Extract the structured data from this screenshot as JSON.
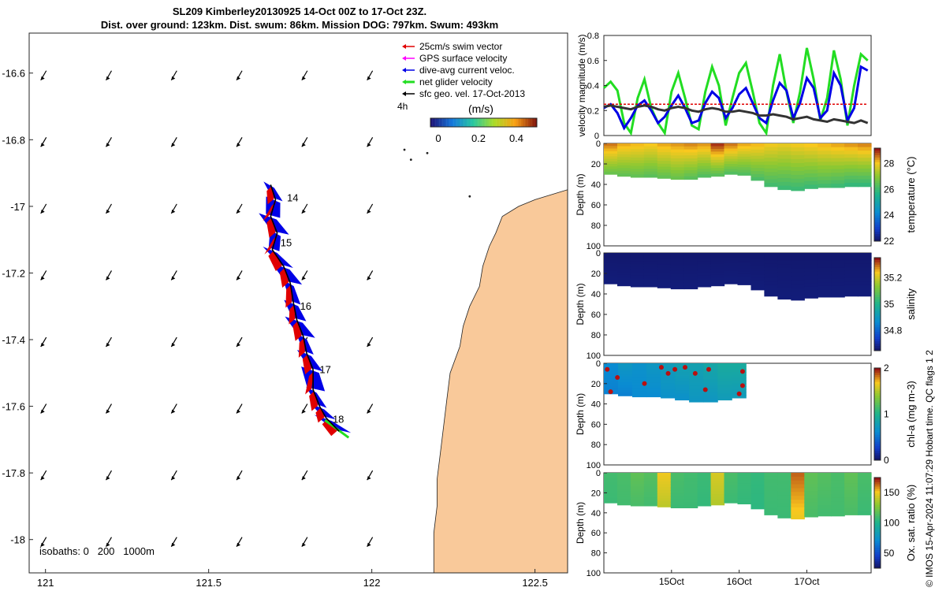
{
  "title": {
    "line1": "SL209 Kimberley20130925 14-Oct 00Z to 17-Oct 23Z.",
    "line2": "Dist. over ground: 123km. Dist. swum: 86km. Mission DOG: 797km. Swum: 493km"
  },
  "footer": "© IMOS 15-Apr-2024 11:07:29 Hobart time. QC flags 1 2",
  "colors": {
    "land": "#f9c99a",
    "swim_vector": "#e00000",
    "gps_velocity": "#ff00ff",
    "current_arrow": "#0000e6",
    "glider_velocity": "#22dd22",
    "geo_velocity": "#000000"
  },
  "chart_data": [
    {
      "type": "map",
      "x_ticks": [
        "121",
        "121.5",
        "122",
        "122.5"
      ],
      "y_ticks": [
        "-16.6",
        "-16.8",
        "-17",
        "-17.2",
        "-17.4",
        "-17.6",
        "-17.8",
        "-18"
      ],
      "xlim": [
        120.95,
        122.6
      ],
      "ylim": [
        -18.1,
        -16.48
      ],
      "legend": {
        "placement": "top-right",
        "items": [
          "25cm/s swim vector",
          "GPS surface velocity",
          "dive-avg current veloc.",
          "net glider velocity",
          "sfc geo. vel. 17-Oct-2013"
        ],
        "time_label": "4h",
        "colorbar_title": "(m/s)",
        "colorbar_ticks": [
          "0",
          "0.2",
          "0.4"
        ]
      },
      "isobaths_label": "isobaths: 0   200   1000m",
      "day_labels": [
        {
          "text": "14",
          "lon": 121.74,
          "lat": -16.985
        },
        {
          "text": "15",
          "lon": 121.72,
          "lat": -17.12
        },
        {
          "text": "16",
          "lon": 121.78,
          "lat": -17.31
        },
        {
          "text": "17",
          "lon": 121.84,
          "lat": -17.5
        },
        {
          "text": "18",
          "lon": 121.88,
          "lat": -17.65
        }
      ],
      "track": [
        [
          121.69,
          -16.935
        ],
        [
          121.705,
          -16.98
        ],
        [
          121.69,
          -17.03
        ],
        [
          121.71,
          -17.08
        ],
        [
          121.695,
          -17.13
        ],
        [
          121.73,
          -17.18
        ],
        [
          121.75,
          -17.23
        ],
        [
          121.76,
          -17.29
        ],
        [
          121.77,
          -17.34
        ],
        [
          121.79,
          -17.39
        ],
        [
          121.8,
          -17.44
        ],
        [
          121.82,
          -17.49
        ],
        [
          121.82,
          -17.55
        ],
        [
          121.84,
          -17.6
        ],
        [
          121.86,
          -17.635
        ],
        [
          121.9,
          -17.675
        ]
      ]
    },
    {
      "type": "line",
      "ylabel": "velocity magnitude (m/s)",
      "ylim": [
        0,
        0.8
      ],
      "y_ticks": [
        "0",
        "0.2",
        "0.4",
        "0.6",
        "0.8"
      ],
      "x": [
        14.0,
        14.1,
        14.2,
        14.3,
        14.4,
        14.5,
        14.6,
        14.7,
        14.8,
        14.9,
        15.0,
        15.1,
        15.2,
        15.3,
        15.4,
        15.5,
        15.6,
        15.7,
        15.8,
        15.9,
        16.0,
        16.1,
        16.2,
        16.3,
        16.4,
        16.5,
        16.6,
        16.7,
        16.8,
        16.9,
        17.0,
        17.1,
        17.2,
        17.3,
        17.4,
        17.5,
        17.6,
        17.7,
        17.8,
        17.9
      ],
      "series": [
        {
          "color": "#22dd22",
          "values": [
            0.38,
            0.43,
            0.36,
            0.1,
            0.02,
            0.3,
            0.45,
            0.22,
            0.1,
            0.02,
            0.35,
            0.5,
            0.3,
            0.08,
            0.05,
            0.35,
            0.55,
            0.4,
            0.08,
            0.3,
            0.5,
            0.58,
            0.35,
            0.1,
            0.02,
            0.4,
            0.65,
            0.35,
            0.1,
            0.35,
            0.7,
            0.45,
            0.12,
            0.3,
            0.68,
            0.45,
            0.08,
            0.4,
            0.65,
            0.6
          ]
        },
        {
          "color": "#0000e6",
          "values": [
            0.22,
            0.25,
            0.18,
            0.06,
            0.14,
            0.24,
            0.28,
            0.2,
            0.1,
            0.15,
            0.24,
            0.32,
            0.22,
            0.1,
            0.12,
            0.26,
            0.35,
            0.3,
            0.14,
            0.22,
            0.33,
            0.38,
            0.26,
            0.14,
            0.1,
            0.28,
            0.42,
            0.36,
            0.14,
            0.26,
            0.46,
            0.38,
            0.14,
            0.2,
            0.5,
            0.4,
            0.12,
            0.22,
            0.55,
            0.52
          ]
        },
        {
          "color": "#e00000",
          "dash": true,
          "values": [
            0.25,
            0.25,
            0.25,
            0.25,
            0.25,
            0.25,
            0.25,
            0.25,
            0.25,
            0.25,
            0.25,
            0.25,
            0.25,
            0.25,
            0.25,
            0.25,
            0.25,
            0.25,
            0.25,
            0.25,
            0.25,
            0.25,
            0.25,
            0.25,
            0.25,
            0.25,
            0.25,
            0.25,
            0.25,
            0.25,
            0.25,
            0.25,
            0.25,
            0.25,
            0.25,
            0.25,
            0.25,
            0.25,
            0.25,
            0.25
          ]
        },
        {
          "color": "#333333",
          "values": [
            0.23,
            0.24,
            0.23,
            0.22,
            0.21,
            0.23,
            0.24,
            0.23,
            0.21,
            0.2,
            0.22,
            0.23,
            0.22,
            0.2,
            0.19,
            0.21,
            0.22,
            0.21,
            0.19,
            0.19,
            0.2,
            0.19,
            0.18,
            0.16,
            0.16,
            0.17,
            0.16,
            0.15,
            0.13,
            0.14,
            0.15,
            0.13,
            0.12,
            0.11,
            0.13,
            0.12,
            0.11,
            0.1,
            0.12,
            0.1
          ]
        }
      ]
    },
    {
      "type": "heatmap",
      "variable": "temperature",
      "ylabel": "Depth (m)",
      "colorbar_label": "temperature (°C)",
      "colorbar_ticks": [
        "28",
        "26",
        "24",
        "22"
      ],
      "clim": [
        22,
        29.2
      ],
      "y_ticks": [
        "0",
        "20",
        "40",
        "60",
        "80",
        "100"
      ],
      "bottom_depth": [
        30,
        32,
        33,
        33,
        34,
        35,
        35,
        33,
        32,
        30,
        31,
        36,
        42,
        45,
        46,
        44,
        43,
        43,
        42,
        42
      ],
      "top_value": [
        28.6,
        28.3,
        28.2,
        28.1,
        28.3,
        28.4,
        28.5,
        28.4,
        29.0,
        28.6,
        28.3,
        28.2,
        28.0,
        27.9,
        28.0,
        28.1,
        28.2,
        28.3,
        28.4,
        28.5
      ],
      "bottom_value": [
        26.6,
        26.5,
        26.5,
        26.4,
        26.5,
        26.6,
        26.4,
        26.3,
        26.4,
        26.3,
        26.3,
        26.2,
        26.1,
        26.0,
        26.0,
        26.0,
        26.1,
        26.0,
        25.9,
        25.9
      ],
      "outline": "band"
    },
    {
      "type": "heatmap",
      "variable": "salinity",
      "ylabel": "Depth (m)",
      "colorbar_label": "salinity",
      "colorbar_ticks": [
        "35.2",
        "35",
        "34.8"
      ],
      "clim": [
        34.65,
        35.35
      ],
      "y_ticks": [
        "0",
        "20",
        "40",
        "60",
        "80",
        "100"
      ],
      "bottom_depth": [
        30,
        32,
        33,
        33,
        34,
        35,
        35,
        33,
        32,
        30,
        31,
        36,
        42,
        45,
        46,
        44,
        43,
        43,
        42,
        42
      ],
      "top_value": [
        34.65,
        34.65,
        34.65,
        34.65,
        34.65,
        34.65,
        34.65,
        34.65,
        34.65,
        34.65,
        34.65,
        34.65,
        34.65,
        34.65,
        34.65,
        34.65,
        34.65,
        34.65,
        34.65,
        34.65
      ],
      "bottom_value": [
        34.66,
        34.66,
        34.66,
        34.66,
        34.66,
        34.66,
        34.66,
        34.66,
        34.66,
        34.66,
        34.66,
        34.66,
        34.66,
        34.66,
        34.66,
        34.66,
        34.66,
        34.66,
        34.66,
        34.66
      ],
      "outline": "band"
    },
    {
      "type": "heatmap",
      "variable": "chl-a",
      "ylabel": "Depth (m)",
      "colorbar_label": "chl-a (mg m-3)",
      "colorbar_ticks": [
        "2",
        "1",
        "0"
      ],
      "clim": [
        0,
        2
      ],
      "y_ticks": [
        "0",
        "20",
        "40",
        "60",
        "80",
        "100"
      ],
      "x_range": [
        14.0,
        16.1
      ],
      "bottom_depth": [
        30,
        32,
        33,
        33,
        34,
        36,
        38,
        38,
        36,
        34
      ],
      "top_value": [
        0.6,
        0.7,
        0.65,
        0.7,
        0.75,
        0.8,
        0.8,
        0.85,
        0.9,
        0.9
      ],
      "bottom_value": [
        0.55,
        0.55,
        0.6,
        0.6,
        0.65,
        0.65,
        0.7,
        0.7,
        0.75,
        0.75
      ],
      "outline": "band-partial"
    },
    {
      "type": "heatmap",
      "variable": "oxygen",
      "ylabel": "Depth (m)",
      "colorbar_label": "Ox. sat. ratio (%)",
      "colorbar_ticks": [
        "150",
        "100",
        "50"
      ],
      "clim": [
        25,
        175
      ],
      "y_ticks": [
        "0",
        "20",
        "40",
        "60",
        "80",
        "100"
      ],
      "x_ticks": [
        "15Oct",
        "16Oct",
        "17Oct"
      ],
      "bottom_depth": [
        30,
        32,
        33,
        33,
        34,
        35,
        35,
        33,
        32,
        30,
        31,
        36,
        42,
        45,
        46,
        44,
        43,
        43,
        42,
        42
      ],
      "top_value": [
        110,
        112,
        118,
        115,
        150,
        112,
        110,
        108,
        145,
        112,
        108,
        106,
        110,
        110,
        165,
        118,
        115,
        112,
        118,
        112
      ],
      "bottom_value": [
        108,
        110,
        112,
        110,
        140,
        108,
        108,
        106,
        138,
        108,
        106,
        104,
        108,
        108,
        150,
        112,
        110,
        110,
        112,
        108
      ],
      "outline": "band"
    }
  ]
}
